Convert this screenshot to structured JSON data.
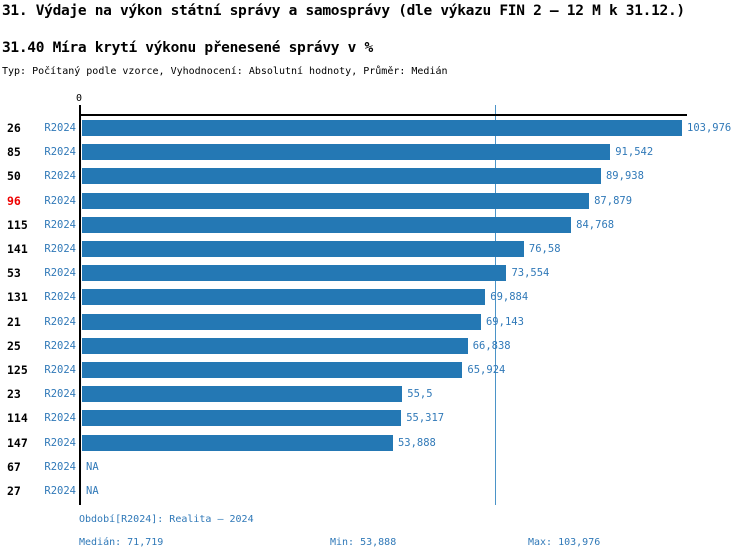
{
  "title": "31. Výdaje na výkon státní správy a samosprávy (dle výkazu FIN 2 – 12 M k 31.12.)",
  "subtitle": "31.40 Míra krytí výkonu přenesené správy v %",
  "meta_line": "Typ: Počítaný podle vzorce, Vyhodnocení: Absolutní hodnoty, Průměr: Medián",
  "axis": {
    "zero_label": "0"
  },
  "chart_data": {
    "type": "bar",
    "orientation": "horizontal",
    "series_name": "R2024",
    "xlim": [
      0,
      104.7
    ],
    "grid": false,
    "categories": [
      "26",
      "85",
      "50",
      "96",
      "115",
      "141",
      "53",
      "131",
      "21",
      "25",
      "125",
      "23",
      "114",
      "147",
      "67",
      "27"
    ],
    "values": [
      103.976,
      91.542,
      89.938,
      87.879,
      84.768,
      76.58,
      73.554,
      69.884,
      69.143,
      66.838,
      65.924,
      55.5,
      55.317,
      53.888,
      null,
      null
    ],
    "value_labels": [
      "103,976",
      "91,542",
      "89,938",
      "87,879",
      "84,768",
      "76,58",
      "73,554",
      "69,884",
      "69,143",
      "66,838",
      "65,924",
      "55,5",
      "55,317",
      "53,888",
      "NA",
      "NA"
    ],
    "highlighted_category": "96",
    "median": 71.719,
    "min": 53.888,
    "max": 103.976,
    "median_line": true
  },
  "footer": {
    "period_line": "Období[R2024]: Realita – 2024",
    "median_label": "Medián: 71,719",
    "min_label": "Min: 53,888",
    "max_label": "Max: 103,976"
  },
  "colors": {
    "bar": "#2478b4",
    "text_blue": "#3079b8",
    "highlight_red": "#ee0000",
    "median_line": "#4b94c8",
    "axis": "#000000",
    "background": "#ffffff"
  }
}
